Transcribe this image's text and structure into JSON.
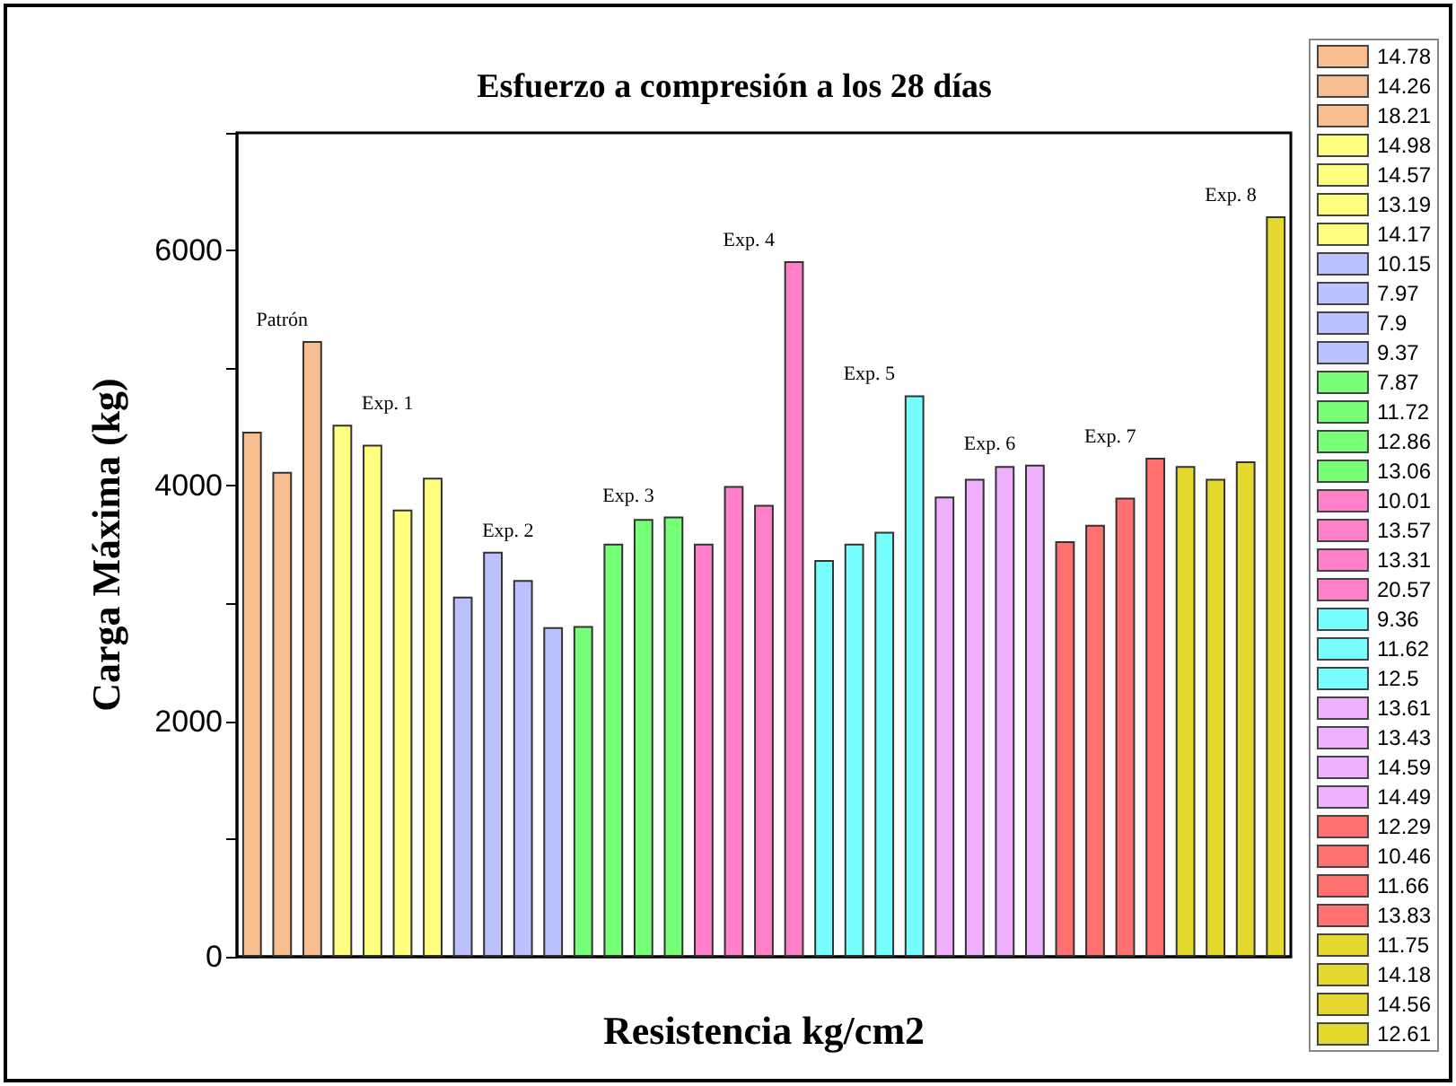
{
  "chart_data": {
    "type": "bar",
    "title": "Esfuerzo a compresión a los 28 días",
    "xlabel": "Resistencia kg/cm2",
    "ylabel": "Carga Máxima (kg)",
    "categories": [
      null,
      null,
      null,
      null,
      null,
      null,
      null,
      null,
      null,
      null,
      null,
      null,
      null,
      null,
      null,
      null,
      null,
      null,
      null,
      null,
      null,
      null,
      null,
      null,
      null,
      null,
      null,
      null,
      null,
      null,
      null,
      null,
      null,
      null,
      null
    ],
    "stacked": true,
    "series": [
      {
        "name": "14.78",
        "color": "#f7be8f",
        "values": [
          4460,
          null,
          null,
          null,
          null,
          null,
          null,
          null,
          null,
          null,
          null,
          null,
          null,
          null,
          null,
          null,
          null,
          null,
          null,
          null,
          null,
          null,
          null,
          null,
          null,
          null,
          null,
          null,
          null,
          null,
          null,
          null,
          null,
          null,
          null
        ]
      },
      {
        "name": "14.26",
        "color": "#f7be8f",
        "values": [
          null,
          4120,
          null,
          null,
          null,
          null,
          null,
          null,
          null,
          null,
          null,
          null,
          null,
          null,
          null,
          null,
          null,
          null,
          null,
          null,
          null,
          null,
          null,
          null,
          null,
          null,
          null,
          null,
          null,
          null,
          null,
          null,
          null,
          null,
          null
        ]
      },
      {
        "name": "18.21",
        "color": "#f7be8f",
        "values": [
          null,
          null,
          5230,
          null,
          null,
          null,
          null,
          null,
          null,
          null,
          null,
          null,
          null,
          null,
          null,
          null,
          null,
          null,
          null,
          null,
          null,
          null,
          null,
          null,
          null,
          null,
          null,
          null,
          null,
          null,
          null,
          null,
          null,
          null,
          null
        ]
      },
      {
        "name": "14.98",
        "color": "#ffff80",
        "values": [
          null,
          null,
          null,
          4520,
          null,
          null,
          null,
          null,
          null,
          null,
          null,
          null,
          null,
          null,
          null,
          null,
          null,
          null,
          null,
          null,
          null,
          null,
          null,
          null,
          null,
          null,
          null,
          null,
          null,
          null,
          null,
          null,
          null,
          null,
          null
        ]
      },
      {
        "name": "14.57",
        "color": "#ffff80",
        "values": [
          null,
          null,
          null,
          null,
          4350,
          null,
          null,
          null,
          null,
          null,
          null,
          null,
          null,
          null,
          null,
          null,
          null,
          null,
          null,
          null,
          null,
          null,
          null,
          null,
          null,
          null,
          null,
          null,
          null,
          null,
          null,
          null,
          null,
          null,
          null
        ]
      },
      {
        "name": "13.19",
        "color": "#ffff80",
        "values": [
          null,
          null,
          null,
          null,
          null,
          3800,
          null,
          null,
          null,
          null,
          null,
          null,
          null,
          null,
          null,
          null,
          null,
          null,
          null,
          null,
          null,
          null,
          null,
          null,
          null,
          null,
          null,
          null,
          null,
          null,
          null,
          null,
          null,
          null,
          null
        ]
      },
      {
        "name": "14.17",
        "color": "#ffff80",
        "values": [
          null,
          null,
          null,
          null,
          null,
          null,
          4070,
          null,
          null,
          null,
          null,
          null,
          null,
          null,
          null,
          null,
          null,
          null,
          null,
          null,
          null,
          null,
          null,
          null,
          null,
          null,
          null,
          null,
          null,
          null,
          null,
          null,
          null,
          null,
          null
        ]
      },
      {
        "name": "10.15",
        "color": "#bbc2ff",
        "values": [
          null,
          null,
          null,
          null,
          null,
          null,
          null,
          3060,
          null,
          null,
          null,
          null,
          null,
          null,
          null,
          null,
          null,
          null,
          null,
          null,
          null,
          null,
          null,
          null,
          null,
          null,
          null,
          null,
          null,
          null,
          null,
          null,
          null,
          null,
          null
        ]
      },
      {
        "name": "7.97",
        "color": "#bbc2ff",
        "values": [
          null,
          null,
          null,
          null,
          null,
          null,
          null,
          null,
          3440,
          null,
          null,
          null,
          null,
          null,
          null,
          null,
          null,
          null,
          null,
          null,
          null,
          null,
          null,
          null,
          null,
          null,
          null,
          null,
          null,
          null,
          null,
          null,
          null,
          null,
          null
        ]
      },
      {
        "name": "7.9",
        "color": "#bbc2ff",
        "values": [
          null,
          null,
          null,
          null,
          null,
          null,
          null,
          null,
          null,
          3200,
          null,
          null,
          null,
          null,
          null,
          null,
          null,
          null,
          null,
          null,
          null,
          null,
          null,
          null,
          null,
          null,
          null,
          null,
          null,
          null,
          null,
          null,
          null,
          null,
          null
        ]
      },
      {
        "name": "9.37",
        "color": "#bbc2ff",
        "values": [
          null,
          null,
          null,
          null,
          null,
          null,
          null,
          null,
          null,
          null,
          2800,
          null,
          null,
          null,
          null,
          null,
          null,
          null,
          null,
          null,
          null,
          null,
          null,
          null,
          null,
          null,
          null,
          null,
          null,
          null,
          null,
          null,
          null,
          null,
          null
        ]
      },
      {
        "name": "7.87",
        "color": "#77ff77",
        "values": [
          null,
          null,
          null,
          null,
          null,
          null,
          null,
          null,
          null,
          null,
          null,
          2810,
          null,
          null,
          null,
          null,
          null,
          null,
          null,
          null,
          null,
          null,
          null,
          null,
          null,
          null,
          null,
          null,
          null,
          null,
          null,
          null,
          null,
          null,
          null
        ]
      },
      {
        "name": "11.72",
        "color": "#77ff77",
        "values": [
          null,
          null,
          null,
          null,
          null,
          null,
          null,
          null,
          null,
          null,
          null,
          null,
          3510,
          null,
          null,
          null,
          null,
          null,
          null,
          null,
          null,
          null,
          null,
          null,
          null,
          null,
          null,
          null,
          null,
          null,
          null,
          null,
          null,
          null,
          null
        ]
      },
      {
        "name": "12.86",
        "color": "#77ff77",
        "values": [
          null,
          null,
          null,
          null,
          null,
          null,
          null,
          null,
          null,
          null,
          null,
          null,
          null,
          3720,
          null,
          null,
          null,
          null,
          null,
          null,
          null,
          null,
          null,
          null,
          null,
          null,
          null,
          null,
          null,
          null,
          null,
          null,
          null,
          null,
          null
        ]
      },
      {
        "name": "13.06",
        "color": "#77ff77",
        "values": [
          null,
          null,
          null,
          null,
          null,
          null,
          null,
          null,
          null,
          null,
          null,
          null,
          null,
          null,
          3740,
          null,
          null,
          null,
          null,
          null,
          null,
          null,
          null,
          null,
          null,
          null,
          null,
          null,
          null,
          null,
          null,
          null,
          null,
          null,
          null
        ]
      },
      {
        "name": "10.01",
        "color": "#ff80c8",
        "values": [
          null,
          null,
          null,
          null,
          null,
          null,
          null,
          null,
          null,
          null,
          null,
          null,
          null,
          null,
          null,
          3510,
          null,
          null,
          null,
          null,
          null,
          null,
          null,
          null,
          null,
          null,
          null,
          null,
          null,
          null,
          null,
          null,
          null,
          null,
          null
        ]
      },
      {
        "name": "13.57",
        "color": "#ff80c8",
        "values": [
          null,
          null,
          null,
          null,
          null,
          null,
          null,
          null,
          null,
          null,
          null,
          null,
          null,
          null,
          null,
          null,
          4000,
          null,
          null,
          null,
          null,
          null,
          null,
          null,
          null,
          null,
          null,
          null,
          null,
          null,
          null,
          null,
          null,
          null,
          null
        ]
      },
      {
        "name": "13.31",
        "color": "#ff80c8",
        "values": [
          null,
          null,
          null,
          null,
          null,
          null,
          null,
          null,
          null,
          null,
          null,
          null,
          null,
          null,
          null,
          null,
          null,
          3840,
          null,
          null,
          null,
          null,
          null,
          null,
          null,
          null,
          null,
          null,
          null,
          null,
          null,
          null,
          null,
          null,
          null
        ]
      },
      {
        "name": "20.57",
        "color": "#ff80c8",
        "values": [
          null,
          null,
          null,
          null,
          null,
          null,
          null,
          null,
          null,
          null,
          null,
          null,
          null,
          null,
          null,
          null,
          null,
          null,
          5910,
          null,
          null,
          null,
          null,
          null,
          null,
          null,
          null,
          null,
          null,
          null,
          null,
          null,
          null,
          null,
          null
        ]
      },
      {
        "name": "9.36",
        "color": "#77ffff",
        "values": [
          null,
          null,
          null,
          null,
          null,
          null,
          null,
          null,
          null,
          null,
          null,
          null,
          null,
          null,
          null,
          null,
          null,
          null,
          null,
          3370,
          null,
          null,
          null,
          null,
          null,
          null,
          null,
          null,
          null,
          null,
          null,
          null,
          null,
          null,
          null
        ]
      },
      {
        "name": "11.62",
        "color": "#77ffff",
        "values": [
          null,
          null,
          null,
          null,
          null,
          null,
          null,
          null,
          null,
          null,
          null,
          null,
          null,
          null,
          null,
          null,
          null,
          null,
          null,
          null,
          3510,
          null,
          null,
          null,
          null,
          null,
          null,
          null,
          null,
          null,
          null,
          null,
          null,
          null,
          null
        ]
      },
      {
        "color": "#77ffff",
        "values": [
          null,
          null,
          null,
          null,
          null,
          null,
          null,
          null,
          null,
          null,
          null,
          null,
          null,
          null,
          null,
          null,
          null,
          null,
          null,
          null,
          null,
          3610,
          null,
          null,
          null,
          null,
          null,
          null,
          null,
          null,
          null,
          null,
          null,
          null,
          null
        ]
      },
      {
        "name": "12.5",
        "color": "#77ffff",
        "values": [
          null,
          null,
          null,
          null,
          null,
          null,
          null,
          null,
          null,
          null,
          null,
          null,
          null,
          null,
          null,
          null,
          null,
          null,
          null,
          null,
          null,
          null,
          4770,
          null,
          null,
          null,
          null,
          null,
          null,
          null,
          null,
          null,
          null,
          null,
          null
        ]
      },
      {
        "name": "13.61",
        "color": "#eeb0ff",
        "values": [
          null,
          null,
          null,
          null,
          null,
          null,
          null,
          null,
          null,
          null,
          null,
          null,
          null,
          null,
          null,
          null,
          null,
          null,
          null,
          null,
          null,
          null,
          null,
          3910,
          null,
          null,
          null,
          null,
          null,
          null,
          null,
          null,
          null,
          null,
          null
        ]
      },
      {
        "name": "13.43",
        "color": "#eeb0ff",
        "values": [
          null,
          null,
          null,
          null,
          null,
          null,
          null,
          null,
          null,
          null,
          null,
          null,
          null,
          null,
          null,
          null,
          null,
          null,
          null,
          null,
          null,
          null,
          null,
          null,
          4060,
          null,
          null,
          null,
          null,
          null,
          null,
          null,
          null,
          null,
          null
        ]
      },
      {
        "name": "14.59",
        "color": "#eeb0ff",
        "values": [
          null,
          null,
          null,
          null,
          null,
          null,
          null,
          null,
          null,
          null,
          null,
          null,
          null,
          null,
          null,
          null,
          null,
          null,
          null,
          null,
          null,
          null,
          null,
          null,
          null,
          4170,
          null,
          null,
          null,
          null,
          null,
          null,
          null,
          null,
          null
        ]
      },
      {
        "name": "14.49",
        "color": "#eeb0ff",
        "values": [
          null,
          null,
          null,
          null,
          null,
          null,
          null,
          null,
          null,
          null,
          null,
          null,
          null,
          null,
          null,
          null,
          null,
          null,
          null,
          null,
          null,
          null,
          null,
          null,
          null,
          null,
          4180,
          null,
          null,
          null,
          null,
          null,
          null,
          null,
          null
        ]
      },
      {
        "name": "12.29",
        "color": "#ff7070",
        "values": [
          null,
          null,
          null,
          null,
          null,
          null,
          null,
          null,
          null,
          null,
          null,
          null,
          null,
          null,
          null,
          null,
          null,
          null,
          null,
          null,
          null,
          null,
          null,
          null,
          null,
          null,
          null,
          3530,
          null,
          null,
          null,
          null,
          null,
          null,
          null
        ]
      },
      {
        "name": "10.46",
        "color": "#ff7070",
        "values": [
          null,
          null,
          null,
          null,
          null,
          null,
          null,
          null,
          null,
          null,
          null,
          null,
          null,
          null,
          null,
          null,
          null,
          null,
          null,
          null,
          null,
          null,
          null,
          null,
          null,
          null,
          null,
          null,
          3670,
          null,
          null,
          null,
          null,
          null,
          null
        ]
      },
      {
        "name": "11.66",
        "color": "#ff7070",
        "values": [
          null,
          null,
          null,
          null,
          null,
          null,
          null,
          null,
          null,
          null,
          null,
          null,
          null,
          null,
          null,
          null,
          null,
          null,
          null,
          null,
          null,
          null,
          null,
          null,
          null,
          null,
          null,
          null,
          null,
          3900,
          null,
          null,
          null,
          null,
          null
        ]
      },
      {
        "name": "13.83",
        "color": "#ff7070",
        "values": [
          null,
          null,
          null,
          null,
          null,
          null,
          null,
          null,
          null,
          null,
          null,
          null,
          null,
          null,
          null,
          null,
          null,
          null,
          null,
          null,
          null,
          null,
          null,
          null,
          null,
          null,
          null,
          null,
          null,
          null,
          4240,
          null,
          null,
          null,
          null
        ]
      },
      {
        "name": "11.75",
        "color": "#e5d930",
        "values": [
          null,
          null,
          null,
          null,
          null,
          null,
          null,
          null,
          null,
          null,
          null,
          null,
          null,
          null,
          null,
          null,
          null,
          null,
          null,
          null,
          null,
          null,
          null,
          null,
          null,
          null,
          null,
          null,
          null,
          null,
          null,
          4170,
          null,
          null,
          null
        ]
      },
      {
        "name": "14.18",
        "color": "#e5d930",
        "values": [
          null,
          null,
          null,
          null,
          null,
          null,
          null,
          null,
          null,
          null,
          null,
          null,
          null,
          null,
          null,
          null,
          null,
          null,
          null,
          null,
          null,
          null,
          null,
          null,
          null,
          null,
          null,
          null,
          null,
          null,
          null,
          null,
          4060,
          null,
          null
        ]
      },
      {
        "name": "14.56",
        "color": "#e5d930",
        "values": [
          null,
          null,
          null,
          null,
          null,
          null,
          null,
          null,
          null,
          null,
          null,
          null,
          null,
          null,
          null,
          null,
          null,
          null,
          null,
          null,
          null,
          null,
          null,
          null,
          null,
          null,
          null,
          null,
          null,
          null,
          null,
          null,
          null,
          4210,
          null
        ]
      },
      {
        "name": "12.61",
        "color": "#e5d930",
        "values": [
          null,
          null,
          null,
          null,
          null,
          null,
          null,
          null,
          null,
          null,
          null,
          null,
          null,
          null,
          null,
          null,
          null,
          null,
          null,
          null,
          null,
          null,
          null,
          null,
          null,
          null,
          null,
          null,
          null,
          null,
          null,
          null,
          null,
          null,
          6290
        ]
      }
    ],
    "ylim": [
      0,
      7000
    ],
    "yticks": [
      0,
      {
        "value": 1000,
        "label": null
      },
      2000,
      {
        "value": 3000,
        "label": null
      },
      4000,
      {
        "value": 5000,
        "label": null
      },
      6000,
      {
        "value": 7000,
        "label": null
      }
    ],
    "tick_labels": "y",
    "grid": false,
    "legend": "right",
    "annotations": [
      "Patrón",
      "Exp. 1",
      "Exp. 2",
      "Exp. 3",
      "Exp. 4",
      "Exp. 5",
      "Exp. 6",
      "Exp. 7",
      "Exp. 8"
    ]
  }
}
